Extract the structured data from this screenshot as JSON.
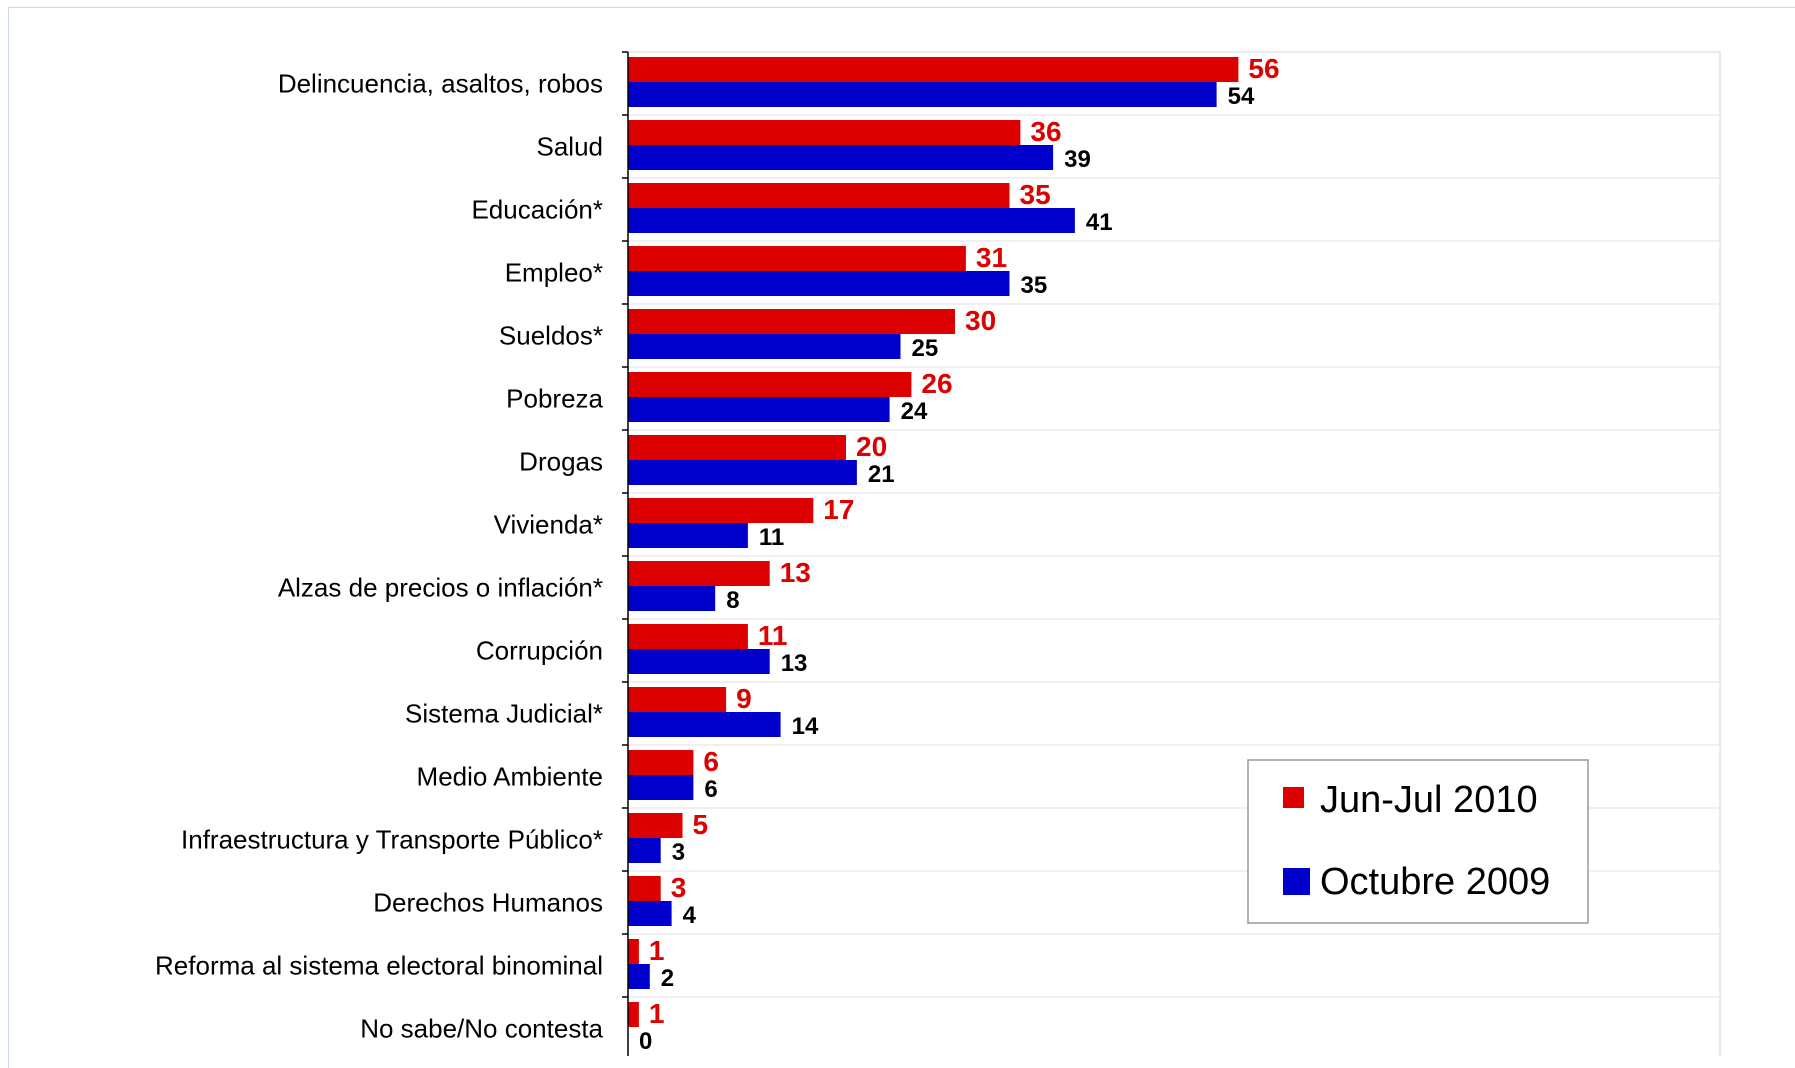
{
  "chart_data": {
    "type": "bar",
    "orientation": "horizontal",
    "categories": [
      "Delincuencia, asaltos, robos",
      "Salud",
      "Educación*",
      "Empleo*",
      "Sueldos*",
      "Pobreza",
      "Drogas",
      "Vivienda*",
      "Alzas de precios o inflación*",
      "Corrupción",
      "Sistema Judicial*",
      "Medio Ambiente",
      "Infraestructura y Transporte Público*",
      "Derechos Humanos",
      "Reforma al sistema electoral binominal",
      "No sabe/No contesta"
    ],
    "series": [
      {
        "name": "Jun-Jul 2010",
        "color": "#dd0000",
        "values": [
          56,
          36,
          35,
          31,
          30,
          26,
          20,
          17,
          13,
          11,
          9,
          6,
          5,
          3,
          1,
          1
        ]
      },
      {
        "name": "Octubre 2009",
        "color": "#0000cc",
        "values": [
          54,
          39,
          41,
          35,
          25,
          24,
          21,
          11,
          8,
          13,
          14,
          6,
          3,
          4,
          2,
          0
        ]
      }
    ],
    "xlim": [
      0,
      100
    ],
    "grid": true,
    "legend_position": "bottom-right"
  }
}
